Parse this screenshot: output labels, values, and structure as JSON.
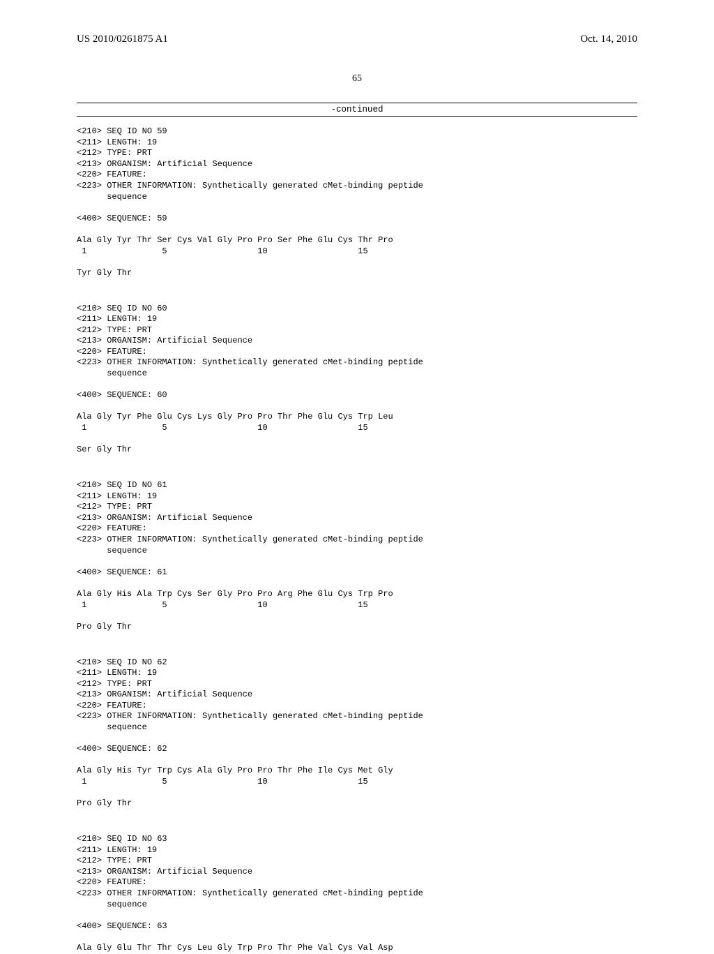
{
  "header": {
    "left": "US 2010/0261875 A1",
    "right": "Oct. 14, 2010"
  },
  "page_number": "65",
  "continued_label": "-continued",
  "sequences": [
    {
      "meta": "<210> SEQ ID NO 59\n<211> LENGTH: 19\n<212> TYPE: PRT\n<213> ORGANISM: Artificial Sequence\n<220> FEATURE:\n<223> OTHER INFORMATION: Synthetically generated cMet-binding peptide\n      sequence",
      "seq_hdr": "<400> SEQUENCE: 59",
      "line1": "Ala Gly Tyr Thr Ser Cys Val Gly Pro Pro Ser Phe Glu Cys Thr Pro",
      "nums": " 1               5                  10                  15",
      "line2": "Tyr Gly Thr"
    },
    {
      "meta": "<210> SEQ ID NO 60\n<211> LENGTH: 19\n<212> TYPE: PRT\n<213> ORGANISM: Artificial Sequence\n<220> FEATURE:\n<223> OTHER INFORMATION: Synthetically generated cMet-binding peptide\n      sequence",
      "seq_hdr": "<400> SEQUENCE: 60",
      "line1": "Ala Gly Tyr Phe Glu Cys Lys Gly Pro Pro Thr Phe Glu Cys Trp Leu",
      "nums": " 1               5                  10                  15",
      "line2": "Ser Gly Thr"
    },
    {
      "meta": "<210> SEQ ID NO 61\n<211> LENGTH: 19\n<212> TYPE: PRT\n<213> ORGANISM: Artificial Sequence\n<220> FEATURE:\n<223> OTHER INFORMATION: Synthetically generated cMet-binding peptide\n      sequence",
      "seq_hdr": "<400> SEQUENCE: 61",
      "line1": "Ala Gly His Ala Trp Cys Ser Gly Pro Pro Arg Phe Glu Cys Trp Pro",
      "nums": " 1               5                  10                  15",
      "line2": "Pro Gly Thr"
    },
    {
      "meta": "<210> SEQ ID NO 62\n<211> LENGTH: 19\n<212> TYPE: PRT\n<213> ORGANISM: Artificial Sequence\n<220> FEATURE:\n<223> OTHER INFORMATION: Synthetically generated cMet-binding peptide\n      sequence",
      "seq_hdr": "<400> SEQUENCE: 62",
      "line1": "Ala Gly His Tyr Trp Cys Ala Gly Pro Pro Thr Phe Ile Cys Met Gly",
      "nums": " 1               5                  10                  15",
      "line2": "Pro Gly Thr"
    },
    {
      "meta": "<210> SEQ ID NO 63\n<211> LENGTH: 19\n<212> TYPE: PRT\n<213> ORGANISM: Artificial Sequence\n<220> FEATURE:\n<223> OTHER INFORMATION: Synthetically generated cMet-binding peptide\n      sequence",
      "seq_hdr": "<400> SEQUENCE: 63",
      "line1": "Ala Gly Glu Thr Thr Cys Leu Gly Trp Pro Thr Phe Val Cys Val Asp",
      "nums": "",
      "line2": ""
    }
  ]
}
